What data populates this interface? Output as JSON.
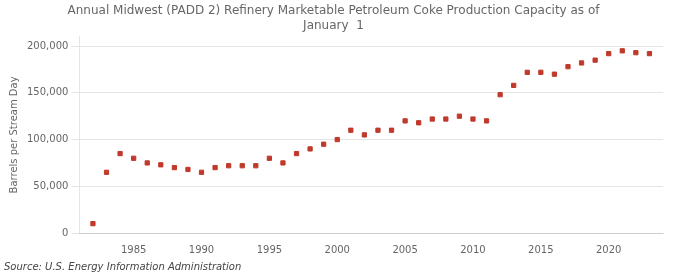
{
  "chart_data": {
    "type": "scatter",
    "title": "Annual Midwest (PADD 2) Refinery Marketable Petroleum Coke Production Capacity as of\nJanuary  1",
    "ylabel": "Barrels per Stream Day",
    "annotation": "Source: U.S. Energy Information Administration",
    "color": "#c0392b",
    "marker": "square",
    "x": [
      1982,
      1983,
      1984,
      1985,
      1986,
      1987,
      1988,
      1989,
      1990,
      1991,
      1992,
      1993,
      1994,
      1995,
      1996,
      1997,
      1998,
      1999,
      2000,
      2001,
      2002,
      2003,
      2004,
      2005,
      2006,
      2007,
      2008,
      2009,
      2010,
      2011,
      2012,
      2013,
      2014,
      2015,
      2016,
      2017,
      2018,
      2019,
      2020,
      2021,
      2022,
      2023
    ],
    "values": [
      10000,
      65000,
      85000,
      80000,
      75000,
      73000,
      70000,
      68000,
      65000,
      70000,
      72000,
      72000,
      72000,
      80000,
      75000,
      85000,
      90000,
      95000,
      100000,
      110000,
      105000,
      110000,
      110000,
      120000,
      118000,
      122000,
      122000,
      125000,
      122000,
      120000,
      148000,
      158000,
      172000,
      172000,
      170000,
      178000,
      182000,
      185000,
      192000,
      195000,
      193000,
      192000
    ],
    "xlim": [
      1981,
      2024
    ],
    "xticks": [
      1985,
      1990,
      1995,
      2000,
      2005,
      2010,
      2015,
      2020
    ],
    "ylim": [
      0,
      210000
    ],
    "yticks": [
      0,
      {
        "value": 50000,
        "label": "50,000"
      },
      {
        "value": 100000,
        "label": "100,000"
      },
      {
        "value": 150000,
        "label": "150,000"
      },
      {
        "value": 200000,
        "label": "200,000"
      }
    ],
    "grid": "y"
  }
}
